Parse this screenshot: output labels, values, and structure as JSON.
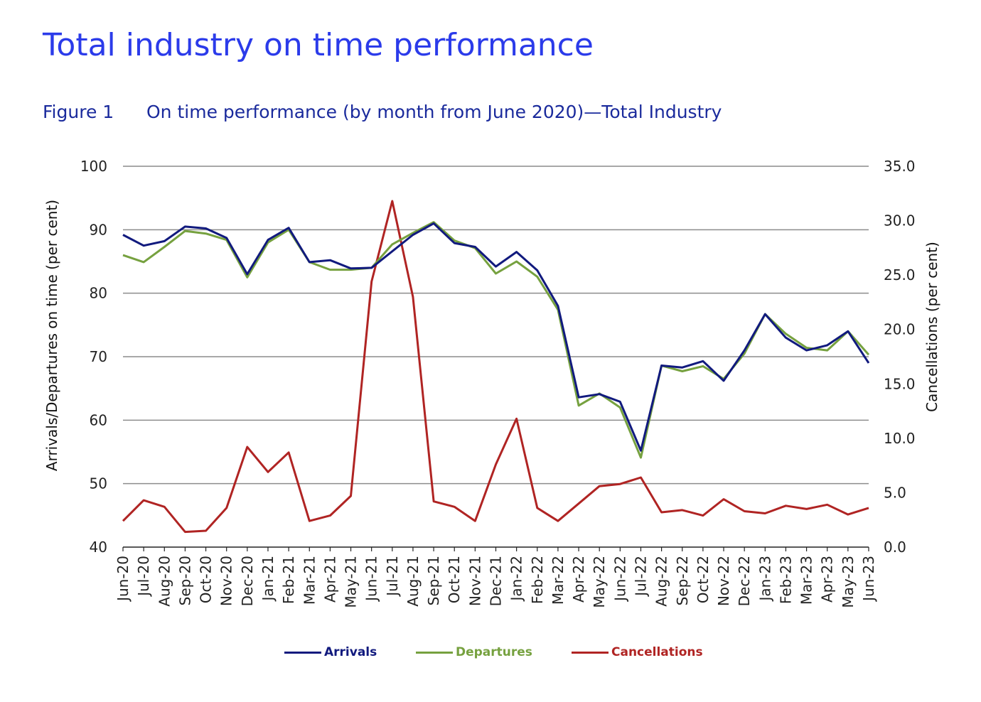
{
  "title": "Total industry on time performance",
  "figure": {
    "label": "Figure 1",
    "caption": "On time performance (by month from June 2020)—Total Industry"
  },
  "colors": {
    "arrivals": "#111a7e",
    "departures": "#76a13f",
    "cancellations": "#b02423",
    "grid": "#8c8c8c"
  },
  "chart_data": {
    "type": "line",
    "title": "On time performance (by month from June 2020)—Total Industry",
    "ylabel": "Arrivals/Departures on time (per cent)",
    "y2label": "Cancellations (per cent)",
    "ylim": [
      40,
      100
    ],
    "y2lim": [
      0,
      35
    ],
    "yticks": [
      "40",
      "50",
      "60",
      "70",
      "80",
      "90",
      "100"
    ],
    "y2ticks": [
      "0.0",
      "5.0",
      "10.0",
      "15.0",
      "20.0",
      "25.0",
      "30.0",
      "35.0"
    ],
    "grid": true,
    "legend_position": "bottom",
    "categories": [
      "Jun-20",
      "Jul-20",
      "Aug-20",
      "Sep-20",
      "Oct-20",
      "Nov-20",
      "Dec-20",
      "Jan-21",
      "Feb-21",
      "Mar-21",
      "Apr-21",
      "May-21",
      "Jun-21",
      "Jul-21",
      "Aug-21",
      "Sep-21",
      "Oct-21",
      "Nov-21",
      "Dec-21",
      "Jan-22",
      "Feb-22",
      "Mar-22",
      "Apr-22",
      "May-22",
      "Jun-22",
      "Jul-22",
      "Aug-22",
      "Sep-22",
      "Oct-22",
      "Nov-22",
      "Dec-22",
      "Jan-23",
      "Feb-23",
      "Mar-23",
      "Apr-23",
      "May-23",
      "Jun-23"
    ],
    "series": [
      {
        "name": "Arrivals",
        "axis": "left",
        "color": "#111a7e",
        "values": [
          89.2,
          87.5,
          88.2,
          90.5,
          90.2,
          88.7,
          83.0,
          88.4,
          90.3,
          84.9,
          85.2,
          83.9,
          84.0,
          86.6,
          89.2,
          91.0,
          87.9,
          87.3,
          84.2,
          86.5,
          83.6,
          78.0,
          63.6,
          64.1,
          62.9,
          55.2,
          68.6,
          68.3,
          69.3,
          66.2,
          71.0,
          76.7,
          73.0,
          71.0,
          71.8,
          74.0,
          69.0
        ]
      },
      {
        "name": "Departures",
        "axis": "left",
        "color": "#76a13f",
        "values": [
          86.0,
          84.9,
          87.3,
          89.8,
          89.4,
          88.4,
          82.5,
          88.0,
          90.0,
          84.9,
          83.7,
          83.7,
          84.0,
          87.7,
          89.5,
          91.2,
          88.3,
          87.1,
          83.1,
          85.0,
          82.6,
          77.4,
          62.3,
          64.2,
          62.0,
          54.1,
          68.6,
          67.7,
          68.5,
          66.5,
          70.5,
          76.7,
          73.6,
          71.4,
          71.0,
          74.0,
          70.3
        ]
      },
      {
        "name": "Cancellations",
        "axis": "right",
        "color": "#b02423",
        "values": [
          2.4,
          4.3,
          3.7,
          1.4,
          1.5,
          3.6,
          9.2,
          6.9,
          8.7,
          2.4,
          2.9,
          4.7,
          24.4,
          31.8,
          23.0,
          4.2,
          3.7,
          2.4,
          7.6,
          11.8,
          3.6,
          2.4,
          4.0,
          5.6,
          5.8,
          6.4,
          3.2,
          3.4,
          2.9,
          4.4,
          3.3,
          3.1,
          3.8,
          3.5,
          3.9,
          3.0,
          3.6
        ]
      }
    ]
  }
}
